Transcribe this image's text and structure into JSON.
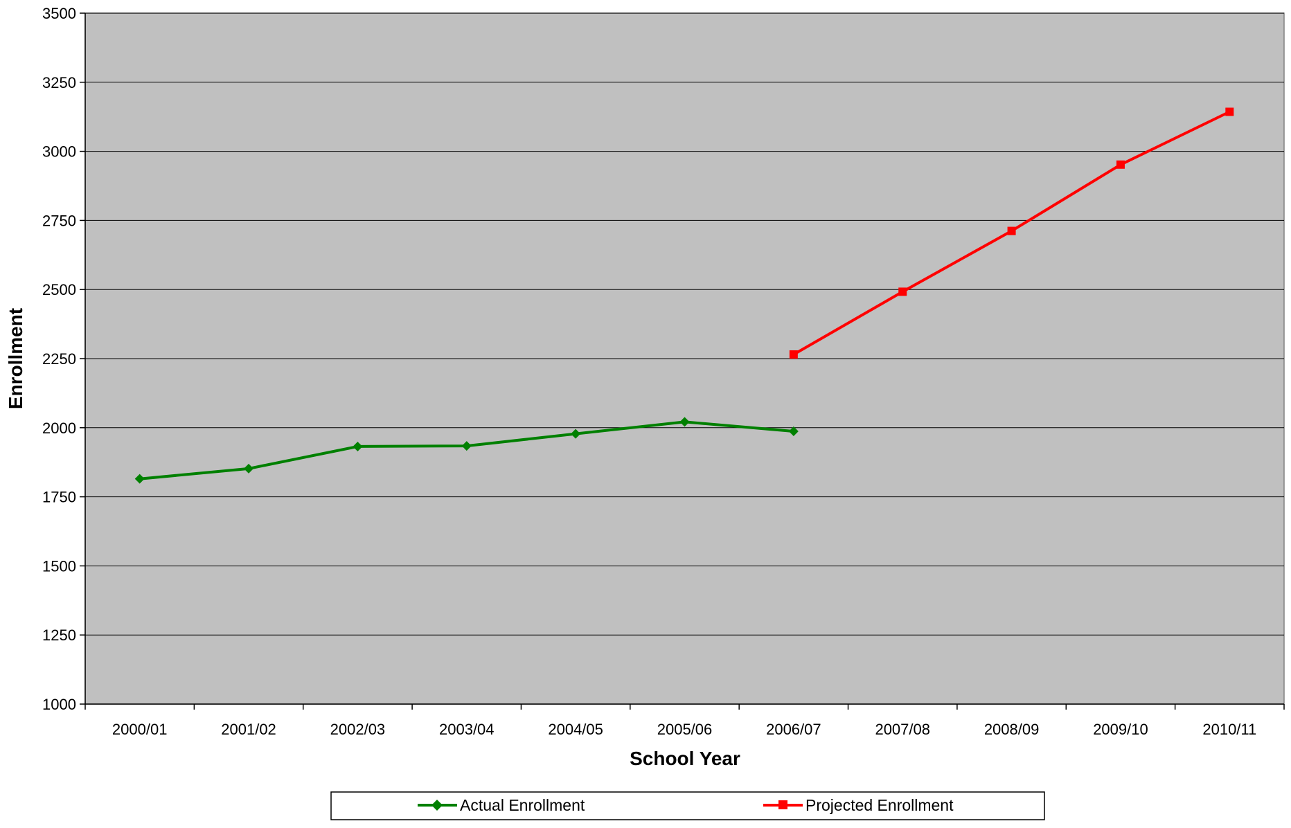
{
  "chart_data": {
    "type": "line",
    "title": "",
    "xlabel": "School Year",
    "ylabel": "Enrollment",
    "categories": [
      "2000/01",
      "2001/02",
      "2002/03",
      "2003/04",
      "2004/05",
      "2005/06",
      "2006/07",
      "2007/08",
      "2008/09",
      "2009/10",
      "2010/11"
    ],
    "ylim": [
      1000,
      3500
    ],
    "yticks": [
      "1000",
      "1250",
      "1500",
      "1750",
      "2000",
      "2250",
      "2500",
      "2750",
      "3000",
      "3250",
      "3500"
    ],
    "grid": true,
    "legend_position": "bottom",
    "plot_background": "#c0c0c0",
    "series": [
      {
        "name": "Actual Enrollment",
        "color": "#008000",
        "marker": "diamond",
        "values": [
          1815,
          1852,
          1932,
          1934,
          1978,
          2021,
          1987,
          null,
          null,
          null,
          null
        ]
      },
      {
        "name": "Projected Enrollment",
        "color": "#ff0000",
        "marker": "square",
        "values": [
          null,
          null,
          null,
          null,
          null,
          null,
          2265,
          2492,
          2712,
          2952,
          3143
        ]
      }
    ]
  }
}
